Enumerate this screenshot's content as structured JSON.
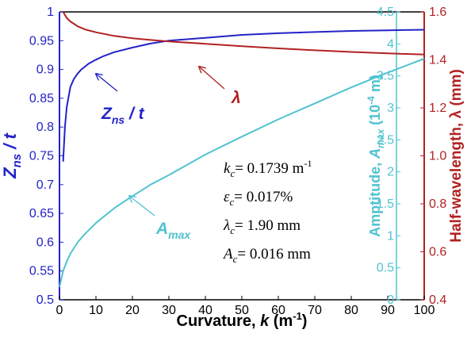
{
  "chart_data": {
    "type": "line",
    "xlabel": "Curvature, k  (m⁻¹)",
    "xlabel_parts": {
      "main": "Curvature, ",
      "var": "k",
      "unit_open": "  (m",
      "unit_exp": "-1",
      "unit_close": ")"
    },
    "xlim": [
      0,
      100
    ],
    "x_ticks": [
      "0",
      "10",
      "20",
      "30",
      "40",
      "50",
      "60",
      "70",
      "80",
      "90",
      "100"
    ],
    "axes": {
      "left": {
        "label": "Zns / t",
        "label_parts": {
          "var": "Z",
          "sub": "ns",
          "rest": " / t"
        },
        "ylim": [
          0.5,
          1.0
        ],
        "ticks": [
          "0.5",
          "0.55",
          "0.6",
          "0.65",
          "0.7",
          "0.75",
          "0.8",
          "0.85",
          "0.9",
          "0.95",
          "1"
        ],
        "color": "#2323c8"
      },
      "right_inner": {
        "label": "Amptitude, Amax (10^-4 m)",
        "label_parts": {
          "main": "Amptitude, ",
          "var": "A",
          "sub": "max",
          "unit_open": " (10",
          "unit_exp": "-4",
          "unit_close": " m)"
        },
        "ylim": [
          0,
          4.5
        ],
        "ticks": [
          "0",
          "0.5",
          "1",
          "1.5",
          "2",
          "2.5",
          "3",
          "3.5",
          "4",
          "4.5"
        ],
        "color": "#4fc3cf"
      },
      "right_outer": {
        "label": "Half-wavelength, λ (mm)",
        "ylim": [
          0.4,
          1.6
        ],
        "ticks": [
          "0.4",
          "0.6",
          "0.8",
          "1.0",
          "1.2",
          "1.4",
          "1.6"
        ],
        "color": "#b22222"
      }
    },
    "series": [
      {
        "name": "Zns / t",
        "axis": "left",
        "color": "#2323c8",
        "x": [
          1,
          1.5,
          2,
          3,
          4,
          5,
          6,
          8,
          10,
          12,
          15,
          20,
          25,
          30,
          40,
          50,
          60,
          70,
          80,
          90,
          100
        ],
        "y": [
          0.74,
          0.8,
          0.835,
          0.87,
          0.884,
          0.893,
          0.9,
          0.91,
          0.917,
          0.923,
          0.93,
          0.938,
          0.945,
          0.95,
          0.955,
          0.96,
          0.963,
          0.965,
          0.967,
          0.968,
          0.969
        ]
      },
      {
        "name": "λ",
        "axis": "right_outer",
        "color": "#b22222",
        "x": [
          1,
          2,
          3,
          4,
          5,
          7,
          10,
          15,
          20,
          25,
          30,
          40,
          50,
          60,
          70,
          80,
          90,
          100
        ],
        "y": [
          1.6,
          1.575,
          1.56,
          1.55,
          1.54,
          1.527,
          1.515,
          1.5,
          1.49,
          1.483,
          1.477,
          1.467,
          1.457,
          1.448,
          1.44,
          1.433,
          1.427,
          1.422
        ]
      },
      {
        "name": "Amax",
        "axis": "right_inner",
        "color": "#4fc3cf",
        "x": [
          0,
          1,
          2,
          3,
          5,
          7,
          10,
          15,
          20,
          25,
          30,
          40,
          50,
          60,
          70,
          80,
          90,
          100
        ],
        "y": [
          0.2,
          0.45,
          0.6,
          0.72,
          0.9,
          1.03,
          1.2,
          1.43,
          1.62,
          1.8,
          1.95,
          2.27,
          2.55,
          2.82,
          3.07,
          3.32,
          3.55,
          3.77
        ]
      }
    ],
    "curve_labels": [
      {
        "series": "Zns / t",
        "var": "Z",
        "sub": "ns",
        "rest": " / t",
        "color": "#2323c8"
      },
      {
        "series": "λ",
        "text": "λ",
        "color": "#b22222"
      },
      {
        "series": "Amax",
        "var": "A",
        "sub": "max",
        "color": "#4fc3cf"
      }
    ],
    "annotations": [
      {
        "var": "k",
        "sub": "c",
        "text": "= 0.1739 m",
        "sup": "-1"
      },
      {
        "var": "ε",
        "sub": "c",
        "text": "= 0.017%",
        "sup": ""
      },
      {
        "var": "λ",
        "sub": "c",
        "text": "= 1.90 mm",
        "sup": ""
      },
      {
        "var": "A",
        "sub": "c",
        "text": "= 0.016 mm",
        "sup": ""
      }
    ],
    "grid": false
  }
}
